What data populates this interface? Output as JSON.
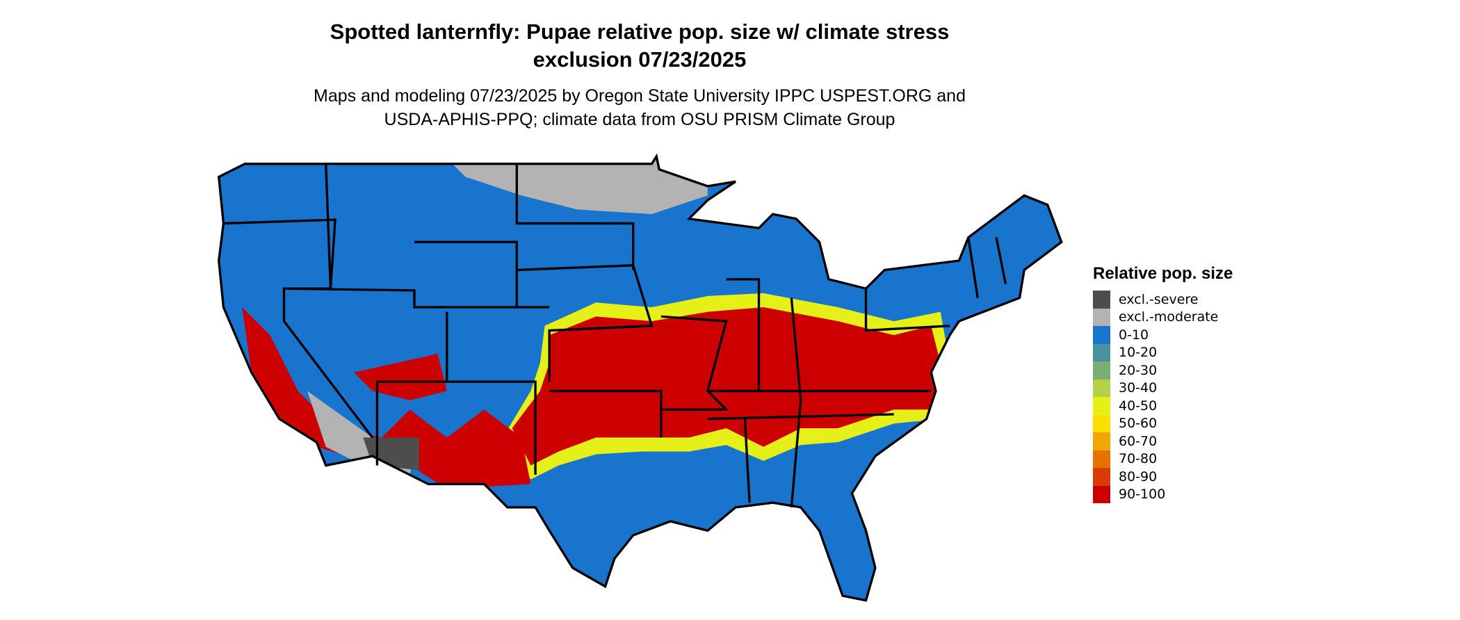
{
  "title": {
    "line1": "Spotted lanternfly: Pupae relative pop. size w/ climate stress",
    "line2": "exclusion 07/23/2025"
  },
  "subtitle": {
    "line1": "Maps and modeling 07/23/2025 by Oregon State University IPPC USPEST.ORG and",
    "line2": "USDA-APHIS-PPQ; climate data from OSU PRISM Climate Group"
  },
  "legend": {
    "title": "Relative pop. size",
    "items": [
      {
        "label": "excl.-severe",
        "color": "#4d4d4d"
      },
      {
        "label": "excl.-moderate",
        "color": "#b3b3b3"
      },
      {
        "label": "0-10",
        "color": "#1874cd"
      },
      {
        "label": "10-20",
        "color": "#48919e"
      },
      {
        "label": "20-30",
        "color": "#7aae72"
      },
      {
        "label": "30-40",
        "color": "#b3d148"
      },
      {
        "label": "40-50",
        "color": "#e5f019"
      },
      {
        "label": "50-60",
        "color": "#f9e000"
      },
      {
        "label": "60-70",
        "color": "#f0a800"
      },
      {
        "label": "70-80",
        "color": "#e67300"
      },
      {
        "label": "80-90",
        "color": "#db3a00"
      },
      {
        "label": "90-100",
        "color": "#cc0000"
      }
    ]
  },
  "map": {
    "region": "Contiguous United States",
    "base_color": "#1874cd",
    "border_color": "#000000"
  }
}
